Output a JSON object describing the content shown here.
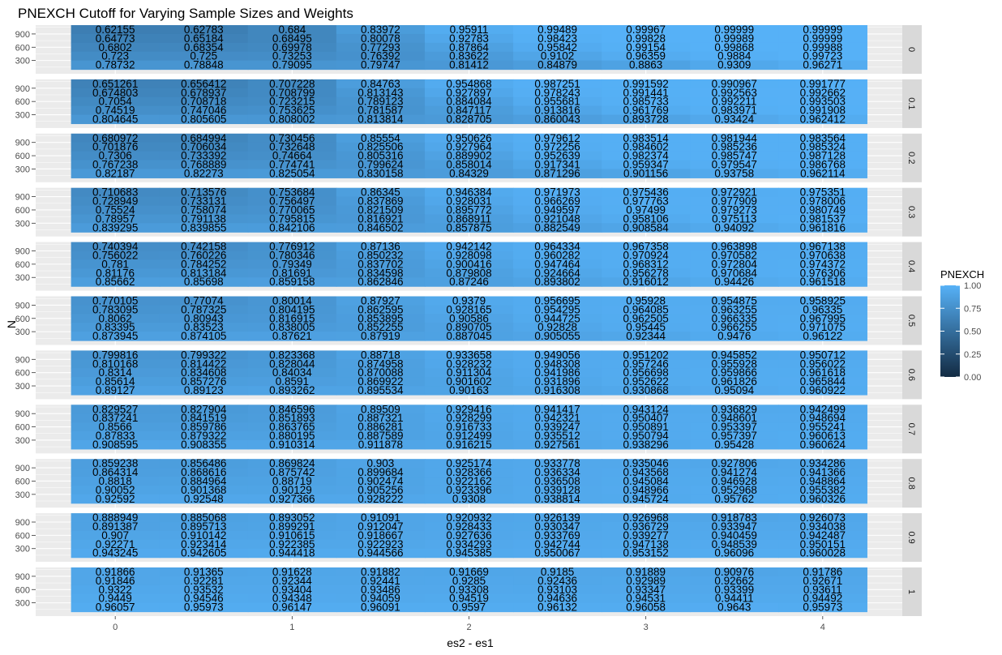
{
  "chart_data": {
    "type": "heatmap",
    "title": "PNEXCH Cutoff for Varying Sample Sizes and Weights",
    "xlabel": "es2 - es1",
    "ylabel": "N",
    "x": [
      0,
      0.5,
      1,
      1.5,
      2,
      2.5,
      3,
      3.5,
      4
    ],
    "x_tick_labels": [
      "0",
      "1",
      "2",
      "3",
      "4"
    ],
    "x_ticks": [
      0,
      1,
      2,
      3,
      4
    ],
    "y": [
      1000,
      800,
      600,
      400,
      200
    ],
    "y_tick_labels": [
      "300",
      "600",
      "900"
    ],
    "y_ticks": [
      300,
      600,
      900
    ],
    "facet_labels": [
      "0",
      "0.1",
      "0.2",
      "0.3",
      "0.4",
      "0.5",
      "0.6",
      "0.7",
      "0.8",
      "0.9",
      "1"
    ],
    "legend": {
      "title": "PNEXCH",
      "ticks": [
        "0.00",
        "0.25",
        "0.50",
        "0.75",
        "1.00"
      ],
      "tick_values": [
        0,
        0.25,
        0.5,
        0.75,
        1
      ],
      "low_color": "#132b43",
      "high_color": "#56b1f7",
      "position": "right"
    },
    "grid": true,
    "facets": [
      {
        "label": "0",
        "values": [
          [
            "0.62155",
            "0.62783",
            "0.684",
            "0.83972",
            "0.95911",
            "0.99489",
            "0.99967",
            "0.99999",
            "0.99999"
          ],
          [
            "0.64773",
            "0.65184",
            "0.68495",
            "0.80078",
            "0.92783",
            "0.98423",
            "0.99828",
            "0.99989",
            "0.99999"
          ],
          [
            "0.6802",
            "0.68354",
            "0.69978",
            "0.77293",
            "0.87864",
            "0.95842",
            "0.99154",
            "0.99868",
            "0.99988"
          ],
          [
            "0.723",
            "0.725",
            "0.73253",
            "0.76392",
            "0.83622",
            "0.9102",
            "0.96359",
            "0.9884",
            "0.99723"
          ],
          [
            "0.78732",
            "0.78848",
            "0.79095",
            "0.79747",
            "0.81412",
            "0.84879",
            "0.8863",
            "0.9309",
            "0.96271"
          ]
        ]
      },
      {
        "label": "0.1",
        "values": [
          [
            "0.651261",
            "0.656412",
            "0.707228",
            "0.84763",
            "0.954868",
            "0.987251",
            "0.991592",
            "0.990967",
            "0.991777"
          ],
          [
            "0.674803",
            "0.678937",
            "0.708799",
            "0.813143",
            "0.927897",
            "0.978243",
            "0.991441",
            "0.992563",
            "0.992662"
          ],
          [
            "0.7054",
            "0.708718",
            "0.723215",
            "0.789123",
            "0.884084",
            "0.955681",
            "0.985733",
            "0.992211",
            "0.993503"
          ],
          [
            "0.74519",
            "0.747046",
            "0.753625",
            "0.781587",
            "0.847117",
            "0.913816",
            "0.961769",
            "0.983971",
            "0.991908"
          ],
          [
            "0.804645",
            "0.805605",
            "0.808002",
            "0.813814",
            "0.828705",
            "0.860043",
            "0.893728",
            "0.93424",
            "0.962412"
          ]
        ]
      },
      {
        "label": "0.2",
        "values": [
          [
            "0.680972",
            "0.684994",
            "0.730456",
            "0.85554",
            "0.950626",
            "0.979612",
            "0.983514",
            "0.981944",
            "0.983564"
          ],
          [
            "0.701876",
            "0.706034",
            "0.732648",
            "0.825506",
            "0.927964",
            "0.972256",
            "0.984602",
            "0.985236",
            "0.985324"
          ],
          [
            "0.7306",
            "0.733392",
            "0.74664",
            "0.805316",
            "0.889902",
            "0.952639",
            "0.982374",
            "0.985747",
            "0.987128"
          ],
          [
            "0.767238",
            "0.768889",
            "0.774741",
            "0.799624",
            "0.858014",
            "0.917341",
            "0.959347",
            "0.979547",
            "0.986768"
          ],
          [
            "0.82187",
            "0.82273",
            "0.825054",
            "0.830158",
            "0.84329",
            "0.871296",
            "0.901156",
            "0.93758",
            "0.962114"
          ]
        ]
      },
      {
        "label": "0.3",
        "values": [
          [
            "0.710683",
            "0.713576",
            "0.753684",
            "0.86345",
            "0.946384",
            "0.971973",
            "0.975436",
            "0.972921",
            "0.975351"
          ],
          [
            "0.728949",
            "0.733131",
            "0.756497",
            "0.837869",
            "0.928031",
            "0.966269",
            "0.977763",
            "0.977909",
            "0.978006"
          ],
          [
            "0.75524",
            "0.758074",
            "0.770065",
            "0.821509",
            "0.895772",
            "0.949597",
            "0.97499",
            "0.979273",
            "0.980749"
          ],
          [
            "0.78957",
            "0.791138",
            "0.795815",
            "0.816921",
            "0.868911",
            "0.921048",
            "0.958106",
            "0.975113",
            "0.981537"
          ],
          [
            "0.839295",
            "0.839855",
            "0.842106",
            "0.846502",
            "0.857875",
            "0.882549",
            "0.908584",
            "0.94092",
            "0.961816"
          ]
        ]
      },
      {
        "label": "0.4",
        "values": [
          [
            "0.740394",
            "0.742158",
            "0.776912",
            "0.87136",
            "0.942142",
            "0.964334",
            "0.967358",
            "0.963898",
            "0.967138"
          ],
          [
            "0.756022",
            "0.760226",
            "0.780346",
            "0.850232",
            "0.928098",
            "0.960282",
            "0.970924",
            "0.970582",
            "0.970638"
          ],
          [
            "0.781",
            "0.784252",
            "0.79349",
            "0.837702",
            "0.900416",
            "0.947464",
            "0.968312",
            "0.972804",
            "0.974372"
          ],
          [
            "0.81176",
            "0.813184",
            "0.81691",
            "0.834598",
            "0.879808",
            "0.924664",
            "0.956278",
            "0.970684",
            "0.976306"
          ],
          [
            "0.85662",
            "0.85698",
            "0.859158",
            "0.862846",
            "0.87246",
            "0.893802",
            "0.916012",
            "0.94426",
            "0.961518"
          ]
        ]
      },
      {
        "label": "0.5",
        "values": [
          [
            "0.770105",
            "0.77074",
            "0.80014",
            "0.87927",
            "0.9379",
            "0.956695",
            "0.95928",
            "0.954875",
            "0.958925"
          ],
          [
            "0.783095",
            "0.787325",
            "0.804195",
            "0.862595",
            "0.928165",
            "0.954295",
            "0.964085",
            "0.963255",
            "0.96335"
          ],
          [
            "0.8062",
            "0.80943",
            "0.816915",
            "0.853895",
            "0.90586",
            "0.944725",
            "0.962505",
            "0.966335",
            "0.967995"
          ],
          [
            "0.83395",
            "0.83523",
            "0.838005",
            "0.852255",
            "0.890705",
            "0.92828",
            "0.95445",
            "0.966255",
            "0.971075"
          ],
          [
            "0.873945",
            "0.874105",
            "0.87621",
            "0.87919",
            "0.887045",
            "0.905055",
            "0.92344",
            "0.9476",
            "0.96122"
          ]
        ]
      },
      {
        "label": "0.6",
        "values": [
          [
            "0.799816",
            "0.799322",
            "0.823368",
            "0.88718",
            "0.933658",
            "0.949056",
            "0.951202",
            "0.945852",
            "0.950712"
          ],
          [
            "0.810168",
            "0.814422",
            "0.828044",
            "0.874958",
            "0.928232",
            "0.948308",
            "0.957246",
            "0.955928",
            "0.956022"
          ],
          [
            "0.8314",
            "0.834608",
            "0.84034",
            "0.870088",
            "0.911304",
            "0.941986",
            "0.956698",
            "0.959866",
            "0.961618"
          ],
          [
            "0.85614",
            "0.857276",
            "0.8591",
            "0.869922",
            "0.901602",
            "0.931896",
            "0.952622",
            "0.961826",
            "0.965844"
          ],
          [
            "0.89127",
            "0.89123",
            "0.893262",
            "0.895534",
            "0.90163",
            "0.916308",
            "0.930868",
            "0.95094",
            "0.960922"
          ]
        ]
      },
      {
        "label": "0.7",
        "values": [
          [
            "0.829527",
            "0.827904",
            "0.846596",
            "0.89509",
            "0.929416",
            "0.941417",
            "0.943124",
            "0.936829",
            "0.942499"
          ],
          [
            "0.837241",
            "0.841519",
            "0.851893",
            "0.887321",
            "0.928299",
            "0.942321",
            "0.950407",
            "0.948601",
            "0.948694"
          ],
          [
            "0.8566",
            "0.859786",
            "0.863765",
            "0.886281",
            "0.916733",
            "0.939247",
            "0.950891",
            "0.953397",
            "0.955241"
          ],
          [
            "0.87833",
            "0.879322",
            "0.880195",
            "0.887589",
            "0.912499",
            "0.935512",
            "0.950794",
            "0.957397",
            "0.960613"
          ],
          [
            "0.908595",
            "0.908355",
            "0.910314",
            "0.911878",
            "0.916215",
            "0.927561",
            "0.938296",
            "0.95428",
            "0.960624"
          ]
        ]
      },
      {
        "label": "0.8",
        "values": [
          [
            "0.859238",
            "0.856486",
            "0.869824",
            "0.903",
            "0.925174",
            "0.933778",
            "0.935046",
            "0.927806",
            "0.934286"
          ],
          [
            "0.864314",
            "0.868616",
            "0.875742",
            "0.899684",
            "0.928366",
            "0.936334",
            "0.943568",
            "0.941274",
            "0.941366"
          ],
          [
            "0.8818",
            "0.884964",
            "0.88719",
            "0.902474",
            "0.922162",
            "0.936508",
            "0.945084",
            "0.946928",
            "0.948864"
          ],
          [
            "0.90052",
            "0.901368",
            "0.90129",
            "0.905256",
            "0.923396",
            "0.939128",
            "0.948966",
            "0.952968",
            "0.955382"
          ],
          [
            "0.92592",
            "0.92548",
            "0.927366",
            "0.928222",
            "0.9308",
            "0.938814",
            "0.945724",
            "0.95762",
            "0.960326"
          ]
        ]
      },
      {
        "label": "0.9",
        "values": [
          [
            "0.888949",
            "0.885068",
            "0.893052",
            "0.91091",
            "0.920932",
            "0.926139",
            "0.926968",
            "0.918783",
            "0.926073"
          ],
          [
            "0.891387",
            "0.895713",
            "0.899291",
            "0.912047",
            "0.928433",
            "0.930347",
            "0.936729",
            "0.933947",
            "0.934038"
          ],
          [
            "0.907",
            "0.910142",
            "0.910615",
            "0.918667",
            "0.927636",
            "0.933769",
            "0.939277",
            "0.940459",
            "0.942487"
          ],
          [
            "0.92271",
            "0.923414",
            "0.922385",
            "0.922923",
            "0.934293",
            "0.942744",
            "0.947138",
            "0.948539",
            "0.950151"
          ],
          [
            "0.943245",
            "0.942605",
            "0.944418",
            "0.944566",
            "0.945385",
            "0.950067",
            "0.953152",
            "0.96096",
            "0.960028"
          ]
        ]
      },
      {
        "label": "1",
        "values": [
          [
            "0.91866",
            "0.91365",
            "0.91628",
            "0.91882",
            "0.91669",
            "0.9185",
            "0.91889",
            "0.90976",
            "0.91786"
          ],
          [
            "0.91846",
            "0.92281",
            "0.92344",
            "0.92441",
            "0.9285",
            "0.92436",
            "0.92989",
            "0.92662",
            "0.92671"
          ],
          [
            "0.9322",
            "0.93532",
            "0.93404",
            "0.93486",
            "0.93308",
            "0.93103",
            "0.93347",
            "0.93399",
            "0.93611"
          ],
          [
            "0.9449",
            "0.94546",
            "0.94348",
            "0.94059",
            "0.94519",
            "0.94636",
            "0.94531",
            "0.94411",
            "0.94492"
          ],
          [
            "0.96057",
            "0.95973",
            "0.96147",
            "0.96091",
            "0.9597",
            "0.96132",
            "0.96058",
            "0.9643",
            "0.95973"
          ]
        ]
      }
    ]
  }
}
